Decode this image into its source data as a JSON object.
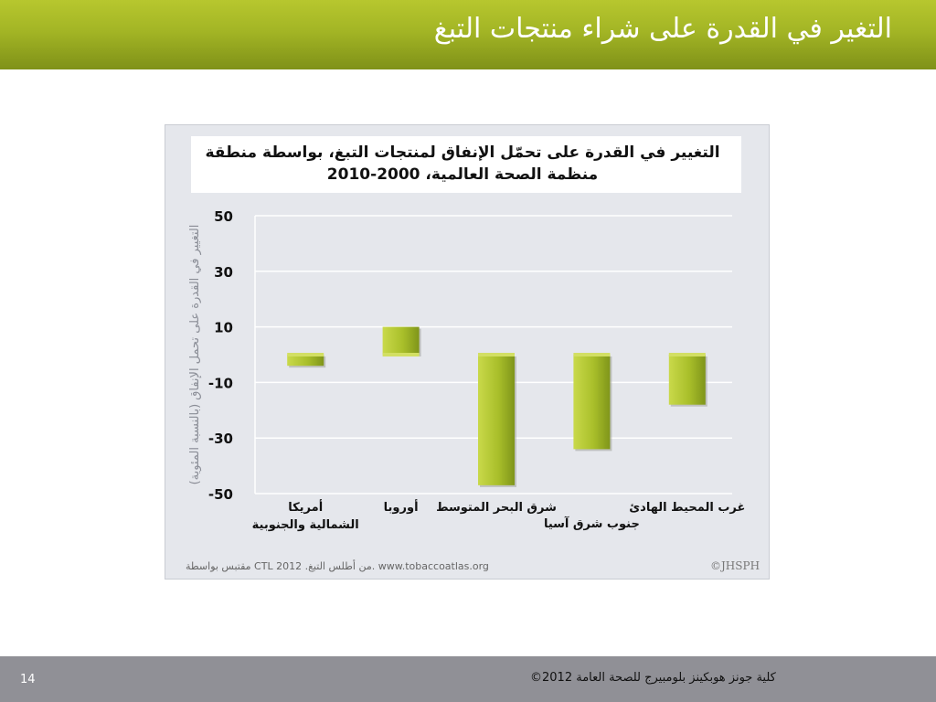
{
  "header": {
    "title": "التغير في القدرة على شراء منتجات التبغ"
  },
  "chart_data": {
    "type": "bar",
    "title": "التغيير في القدرة على تحمّل الإنفاق لمنتجات التبغ، بواسطة منطقة منظمة الصحة العالمية، 2000-2010",
    "ylabel": "التغيير في القدرة على تحمل الإنفاق (بالنسبة المئوية)",
    "xlabel": "",
    "categories": [
      "أمريكا الشمالية والجنوبية",
      "أوروبا",
      "شرق البحر المتوسط",
      "جنوب شرق آسيا",
      "غرب المحيط الهادئ"
    ],
    "category_lines": [
      [
        "أمريكا",
        "الشمالية والجنوبية"
      ],
      [
        "أوروبا"
      ],
      [
        "شرق البحر المتوسط"
      ],
      [
        "جنوب شرق آسيا"
      ],
      [
        "غرب المحيط الهادئ"
      ]
    ],
    "values": [
      -4,
      10,
      -47,
      -34,
      -18
    ],
    "ylim": [
      -50,
      50
    ],
    "yticks": [
      50,
      30,
      10,
      -10,
      -30,
      -50
    ],
    "grid": true,
    "bar_color": "#a8bf2a",
    "source": "مقتبس بواسطة CTL من أطلس التبغ. 2012. www.tobaccoatlas.org",
    "logo": "©JHSPH"
  },
  "footer": {
    "page": "14",
    "copyright": "©2012 كلية جونز هوبكينز بلومبيرج للصحة العامة"
  }
}
